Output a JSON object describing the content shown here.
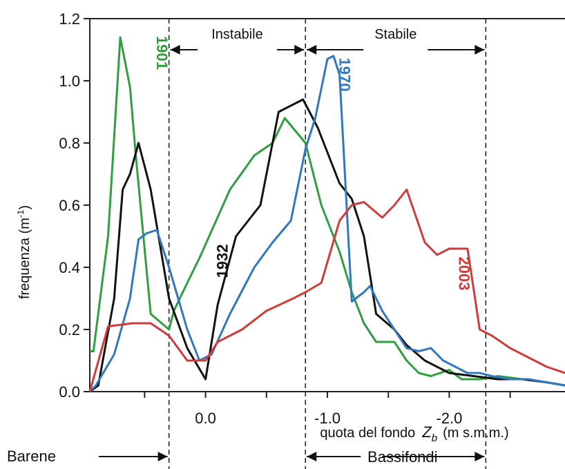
{
  "chart_data": {
    "type": "line",
    "ylabel": "frequenza  (m",
    "ylabel_sup": "-1",
    "ylabel_close": ")",
    "xlabel_prefix": "quota del fondo",
    "xlabel_var": "Z",
    "xlabel_sub": "b",
    "xlabel_units": "(m s.m.m.)",
    "xlim": [
      0.95,
      -2.95
    ],
    "ylim": [
      0.0,
      1.2
    ],
    "y_ticks": [
      {
        "v": 0.0,
        "label": "0.0"
      },
      {
        "v": 0.2,
        "label": "0.2"
      },
      {
        "v": 0.4,
        "label": "0.4"
      },
      {
        "v": 0.6,
        "label": "0.6"
      },
      {
        "v": 0.8,
        "label": "0.8"
      },
      {
        "v": 1.0,
        "label": "1.0"
      },
      {
        "v": 1.2,
        "label": "1.2"
      }
    ],
    "x_ticks": [
      {
        "v": 0.0,
        "label": "0.0"
      },
      {
        "v": -1.0,
        "label": "-1.0"
      },
      {
        "v": -2.0,
        "label": "-2.0"
      }
    ],
    "x_minor_ticks": [
      0.5,
      -0.5,
      -1.5,
      -2.5
    ],
    "vlines": [
      0.3,
      -0.82,
      -2.3
    ],
    "regions": [
      {
        "label": "Instabile",
        "from": 0.3,
        "to": -0.82,
        "level": "top"
      },
      {
        "label": "Stabile",
        "from": -0.82,
        "to": -2.3,
        "level": "top"
      },
      {
        "label": "Barene",
        "from": 0.95,
        "to": 0.3,
        "level": "bottom"
      },
      {
        "label": "Bassifondi",
        "from": -0.82,
        "to": -2.3,
        "level": "bottom"
      }
    ],
    "series": [
      {
        "name": "1901",
        "color": "#2e9e3e",
        "label_at": [
          0.4,
          1.09
        ],
        "label_rotate": 90,
        "x": [
          0.95,
          0.92,
          0.8,
          0.7,
          0.62,
          0.57,
          0.45,
          0.3,
          0.26,
          0.15,
          0.05,
          -0.2,
          -0.4,
          -0.55,
          -0.65,
          -0.82,
          -0.95,
          -1.1,
          -1.2,
          -1.3,
          -1.4,
          -1.55,
          -1.65,
          -1.75,
          -1.85,
          -2.0,
          -2.1,
          -2.25,
          -2.4,
          -2.6,
          -2.8,
          -2.95
        ],
        "y": [
          0.13,
          0.13,
          0.5,
          1.14,
          0.98,
          0.75,
          0.25,
          0.2,
          0.26,
          0.35,
          0.43,
          0.65,
          0.76,
          0.8,
          0.88,
          0.8,
          0.6,
          0.45,
          0.32,
          0.22,
          0.16,
          0.16,
          0.1,
          0.06,
          0.05,
          0.07,
          0.04,
          0.04,
          0.05,
          0.04,
          0.03,
          0.02
        ]
      },
      {
        "name": "1932",
        "color": "#111111",
        "label_at": [
          -0.18,
          0.42
        ],
        "label_rotate": -90,
        "x": [
          0.95,
          0.88,
          0.75,
          0.68,
          0.62,
          0.55,
          0.45,
          0.3,
          0.15,
          0.0,
          -0.1,
          -0.25,
          -0.45,
          -0.6,
          -0.8,
          -0.92,
          -1.1,
          -1.2,
          -1.3,
          -1.4,
          -1.55,
          -1.65,
          -1.8,
          -2.0,
          -2.2,
          -2.4,
          -2.6,
          -2.8,
          -2.95
        ],
        "y": [
          0.0,
          0.02,
          0.3,
          0.65,
          0.7,
          0.8,
          0.65,
          0.3,
          0.14,
          0.04,
          0.28,
          0.5,
          0.6,
          0.9,
          0.94,
          0.85,
          0.67,
          0.62,
          0.5,
          0.25,
          0.2,
          0.15,
          0.1,
          0.06,
          0.05,
          0.04,
          0.04,
          0.03,
          0.02
        ]
      },
      {
        "name": "1970",
        "color": "#2f78c0",
        "label_at": [
          -1.1,
          1.02
        ],
        "label_rotate": 90,
        "x": [
          0.95,
          0.9,
          0.75,
          0.62,
          0.55,
          0.48,
          0.4,
          0.3,
          0.15,
          0.05,
          -0.05,
          -0.2,
          -0.4,
          -0.55,
          -0.7,
          -0.82,
          -0.9,
          -1.0,
          -1.05,
          -1.1,
          -1.2,
          -1.3,
          -1.35,
          -1.45,
          -1.55,
          -1.65,
          -1.75,
          -1.85,
          -1.95,
          -2.05,
          -2.15,
          -2.25,
          -2.35,
          -2.5,
          -2.65,
          -2.8,
          -2.95
        ],
        "y": [
          0.0,
          0.02,
          0.12,
          0.3,
          0.49,
          0.51,
          0.52,
          0.4,
          0.2,
          0.1,
          0.12,
          0.25,
          0.4,
          0.48,
          0.55,
          0.78,
          0.88,
          1.07,
          1.08,
          1.02,
          0.29,
          0.32,
          0.34,
          0.26,
          0.2,
          0.14,
          0.13,
          0.14,
          0.1,
          0.08,
          0.06,
          0.06,
          0.05,
          0.04,
          0.04,
          0.03,
          0.02
        ]
      },
      {
        "name": "2003",
        "color": "#d23a3a",
        "label_at": [
          -2.08,
          0.38
        ],
        "label_rotate": 90,
        "x": [
          0.95,
          0.8,
          0.6,
          0.45,
          0.3,
          0.15,
          0.0,
          -0.1,
          -0.3,
          -0.5,
          -0.72,
          -0.82,
          -0.95,
          -1.1,
          -1.2,
          -1.3,
          -1.45,
          -1.55,
          -1.65,
          -1.8,
          -1.9,
          -2.0,
          -2.15,
          -2.25,
          -2.35,
          -2.5,
          -2.65,
          -2.8,
          -2.95
        ],
        "y": [
          0.0,
          0.21,
          0.22,
          0.22,
          0.18,
          0.1,
          0.1,
          0.16,
          0.2,
          0.26,
          0.3,
          0.32,
          0.35,
          0.55,
          0.6,
          0.61,
          0.56,
          0.6,
          0.65,
          0.48,
          0.44,
          0.46,
          0.46,
          0.2,
          0.18,
          0.14,
          0.11,
          0.08,
          0.06
        ]
      }
    ],
    "grid": false,
    "legend": "inline labels"
  }
}
